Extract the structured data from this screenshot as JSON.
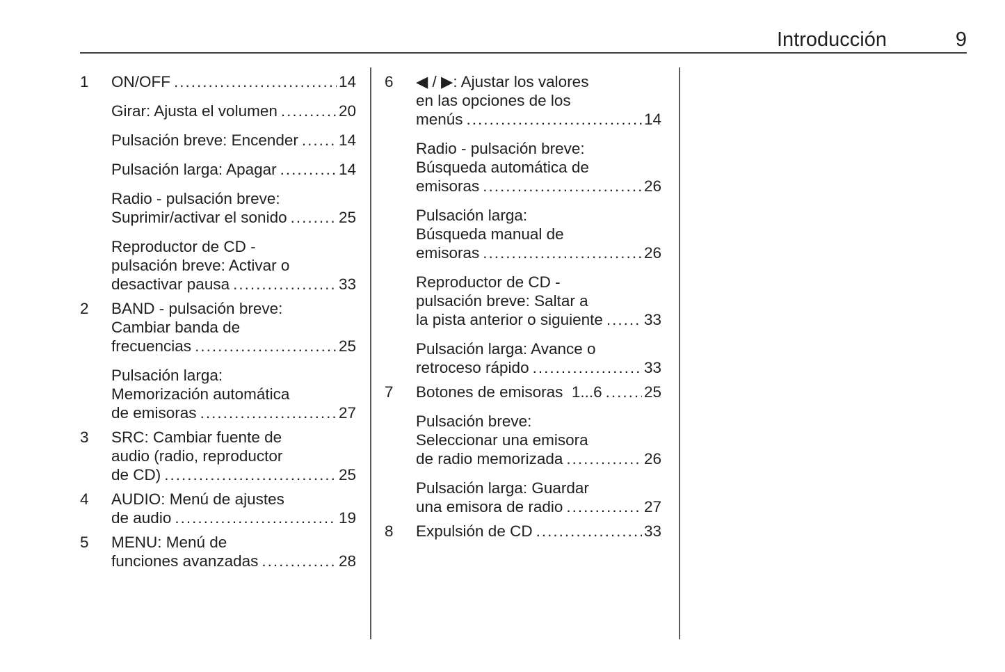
{
  "header": {
    "title": "Introducción",
    "page_number": "9"
  },
  "columns": [
    {
      "entries": [
        {
          "num": "1",
          "lines": [
            "ON/OFF"
          ],
          "page": "14"
        },
        {
          "num": "",
          "lines": [
            "Girar: Ajusta el volumen"
          ],
          "page": "20"
        },
        {
          "num": "",
          "lines": [
            "Pulsación breve: Encender"
          ],
          "page": "14"
        },
        {
          "num": "",
          "lines": [
            "Pulsación larga: Apagar"
          ],
          "page": "14"
        },
        {
          "num": "",
          "lines": [
            "Radio - pulsación breve:",
            "Suprimir/activar el sonido"
          ],
          "page": "25"
        },
        {
          "num": "",
          "lines": [
            "Reproductor de CD -",
            "pulsación breve: Activar o",
            "desactivar pausa"
          ],
          "page": "33"
        },
        {
          "num": "2",
          "lines": [
            "BAND - pulsación breve:",
            "Cambiar banda de",
            "frecuencias"
          ],
          "page": "25"
        },
        {
          "num": "",
          "lines": [
            "Pulsación larga:",
            "Memorización automática",
            "de emisoras"
          ],
          "page": "27"
        },
        {
          "num": "3",
          "lines": [
            "SRC: Cambiar fuente de",
            "audio (radio, reproductor",
            "de CD)"
          ],
          "page": "25"
        },
        {
          "num": "4",
          "lines": [
            "AUDIO: Menú de ajustes",
            "de audio"
          ],
          "page": "19"
        },
        {
          "num": "5",
          "lines": [
            "MENU: Menú de",
            "funciones avanzadas"
          ],
          "page": "28"
        }
      ]
    },
    {
      "entries": [
        {
          "num": "6",
          "lines": [
            "◀ / ▶: Ajustar los valores",
            "en las opciones de los",
            "menús"
          ],
          "page": "14"
        },
        {
          "num": "",
          "lines": [
            "Radio - pulsación breve:",
            "Búsqueda automática de",
            "emisoras"
          ],
          "page": "26"
        },
        {
          "num": "",
          "lines": [
            "Pulsación larga:",
            "Búsqueda manual de",
            "emisoras"
          ],
          "page": "26"
        },
        {
          "num": "",
          "lines": [
            "Reproductor de CD -",
            "pulsación breve: Saltar a",
            "la pista anterior o siguiente"
          ],
          "page": "33"
        },
        {
          "num": "",
          "lines": [
            "Pulsación larga: Avance o",
            "retroceso rápido"
          ],
          "page": "33"
        },
        {
          "num": "7",
          "lines": [
            "Botones de emisoras  1...6"
          ],
          "page": "25"
        },
        {
          "num": "",
          "lines": [
            "Pulsación breve:",
            "Seleccionar una emisora",
            "de radio memorizada"
          ],
          "page": "26"
        },
        {
          "num": "",
          "lines": [
            "Pulsación larga: Guardar",
            "una emisora de radio"
          ],
          "page": "27"
        },
        {
          "num": "8",
          "lines": [
            "Expulsión de CD"
          ],
          "page": "33"
        }
      ]
    }
  ]
}
